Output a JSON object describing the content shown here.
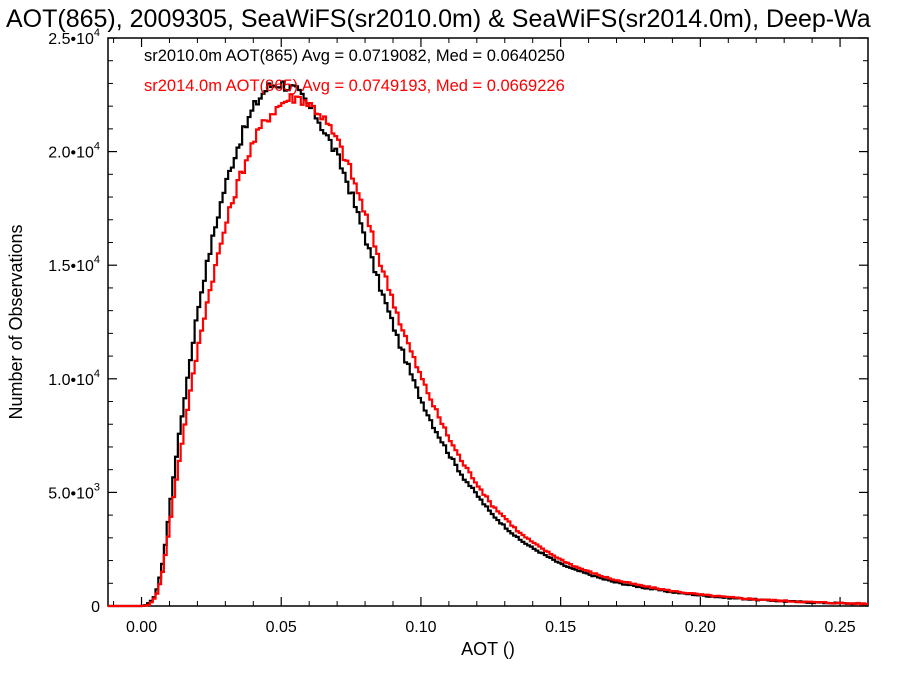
{
  "chart_data": {
    "type": "line",
    "title": "AOT(865), 2009305, SeaWiFS(sr2010.0m) & SeaWiFS(sr2014.0m), Deep-Wa",
    "xlabel": "AOT ()",
    "ylabel": "Number of Observations",
    "xlim": [
      -0.012,
      0.26
    ],
    "ylim": [
      0,
      25000
    ],
    "grid": false,
    "x_ticks": [
      0.0,
      0.05,
      0.1,
      0.15,
      0.2,
      0.25
    ],
    "x_tick_labels": [
      "0.00",
      "0.05",
      "0.10",
      "0.15",
      "0.20",
      "0.25"
    ],
    "y_ticks": [
      0,
      5000,
      10000,
      15000,
      20000,
      25000
    ],
    "y_tick_labels": [
      {
        "mant": "0",
        "exp": ""
      },
      {
        "mant": "5.0•10",
        "exp": "3"
      },
      {
        "mant": "1.0•10",
        "exp": "4"
      },
      {
        "mant": "1.5•10",
        "exp": "4"
      },
      {
        "mant": "2.0•10",
        "exp": "4"
      },
      {
        "mant": "2.5•10",
        "exp": "4"
      }
    ],
    "annotations": [
      {
        "text": "sr2010.0m AOT(865) Avg = 0.0719082, Med = 0.0640250",
        "color": "#000000"
      },
      {
        "text": "sr2014.0m AOT(865) Avg = 0.0749193, Med = 0.0669226",
        "color": "#ff0000"
      }
    ],
    "series": [
      {
        "color": "#000000",
        "points": [
          [
            -0.012,
            0
          ],
          [
            0.0,
            0
          ],
          [
            0.002,
            50
          ],
          [
            0.004,
            250
          ],
          [
            0.006,
            900
          ],
          [
            0.008,
            2200
          ],
          [
            0.01,
            4200
          ],
          [
            0.012,
            6200
          ],
          [
            0.015,
            8800
          ],
          [
            0.018,
            11300
          ],
          [
            0.02,
            12900
          ],
          [
            0.022,
            14200
          ],
          [
            0.025,
            15900
          ],
          [
            0.028,
            17500
          ],
          [
            0.03,
            18500
          ],
          [
            0.033,
            19700
          ],
          [
            0.035,
            20400
          ],
          [
            0.038,
            21300
          ],
          [
            0.04,
            21900
          ],
          [
            0.043,
            22500
          ],
          [
            0.045,
            22800
          ],
          [
            0.048,
            23000
          ],
          [
            0.05,
            23000
          ],
          [
            0.052,
            22900
          ],
          [
            0.055,
            22700
          ],
          [
            0.058,
            22300
          ],
          [
            0.06,
            22000
          ],
          [
            0.063,
            21500
          ],
          [
            0.065,
            21000
          ],
          [
            0.068,
            20300
          ],
          [
            0.07,
            19800
          ],
          [
            0.073,
            18900
          ],
          [
            0.075,
            18200
          ],
          [
            0.078,
            17000
          ],
          [
            0.08,
            16300
          ],
          [
            0.083,
            15000
          ],
          [
            0.085,
            14200
          ],
          [
            0.088,
            13100
          ],
          [
            0.09,
            12400
          ],
          [
            0.093,
            11300
          ],
          [
            0.095,
            10700
          ],
          [
            0.098,
            9700
          ],
          [
            0.1,
            9100
          ],
          [
            0.105,
            7800
          ],
          [
            0.11,
            6700
          ],
          [
            0.115,
            5700
          ],
          [
            0.12,
            4900
          ],
          [
            0.125,
            4100
          ],
          [
            0.13,
            3500
          ],
          [
            0.135,
            2950
          ],
          [
            0.14,
            2550
          ],
          [
            0.145,
            2200
          ],
          [
            0.15,
            1850
          ],
          [
            0.155,
            1600
          ],
          [
            0.16,
            1400
          ],
          [
            0.165,
            1200
          ],
          [
            0.17,
            1030
          ],
          [
            0.18,
            800
          ],
          [
            0.19,
            610
          ],
          [
            0.2,
            470
          ],
          [
            0.21,
            360
          ],
          [
            0.22,
            280
          ],
          [
            0.23,
            210
          ],
          [
            0.24,
            160
          ],
          [
            0.25,
            120
          ],
          [
            0.26,
            90
          ]
        ]
      },
      {
        "color": "#ff0000",
        "points": [
          [
            -0.012,
            0
          ],
          [
            0.0,
            0
          ],
          [
            0.002,
            30
          ],
          [
            0.004,
            180
          ],
          [
            0.006,
            700
          ],
          [
            0.008,
            1800
          ],
          [
            0.01,
            3500
          ],
          [
            0.012,
            5200
          ],
          [
            0.015,
            7600
          ],
          [
            0.018,
            9800
          ],
          [
            0.02,
            11200
          ],
          [
            0.022,
            12500
          ],
          [
            0.025,
            14200
          ],
          [
            0.028,
            15700
          ],
          [
            0.03,
            16700
          ],
          [
            0.033,
            18000
          ],
          [
            0.035,
            18800
          ],
          [
            0.038,
            19800
          ],
          [
            0.04,
            20400
          ],
          [
            0.043,
            21100
          ],
          [
            0.045,
            21500
          ],
          [
            0.048,
            21900
          ],
          [
            0.05,
            22100
          ],
          [
            0.052,
            22300
          ],
          [
            0.055,
            22400
          ],
          [
            0.058,
            22300
          ],
          [
            0.06,
            22100
          ],
          [
            0.063,
            21800
          ],
          [
            0.065,
            21500
          ],
          [
            0.068,
            20900
          ],
          [
            0.07,
            20500
          ],
          [
            0.073,
            19700
          ],
          [
            0.075,
            19100
          ],
          [
            0.078,
            18000
          ],
          [
            0.08,
            17300
          ],
          [
            0.083,
            16100
          ],
          [
            0.085,
            15300
          ],
          [
            0.088,
            14200
          ],
          [
            0.09,
            13500
          ],
          [
            0.093,
            12300
          ],
          [
            0.095,
            11700
          ],
          [
            0.098,
            10700
          ],
          [
            0.1,
            10100
          ],
          [
            0.105,
            8700
          ],
          [
            0.11,
            7400
          ],
          [
            0.115,
            6300
          ],
          [
            0.12,
            5400
          ],
          [
            0.125,
            4500
          ],
          [
            0.13,
            3900
          ],
          [
            0.135,
            3250
          ],
          [
            0.14,
            2800
          ],
          [
            0.145,
            2400
          ],
          [
            0.15,
            2050
          ],
          [
            0.155,
            1750
          ],
          [
            0.16,
            1520
          ],
          [
            0.165,
            1310
          ],
          [
            0.17,
            1130
          ],
          [
            0.18,
            870
          ],
          [
            0.19,
            660
          ],
          [
            0.2,
            500
          ],
          [
            0.21,
            385
          ],
          [
            0.22,
            295
          ],
          [
            0.23,
            225
          ],
          [
            0.24,
            170
          ],
          [
            0.25,
            130
          ],
          [
            0.26,
            95
          ]
        ]
      }
    ]
  }
}
